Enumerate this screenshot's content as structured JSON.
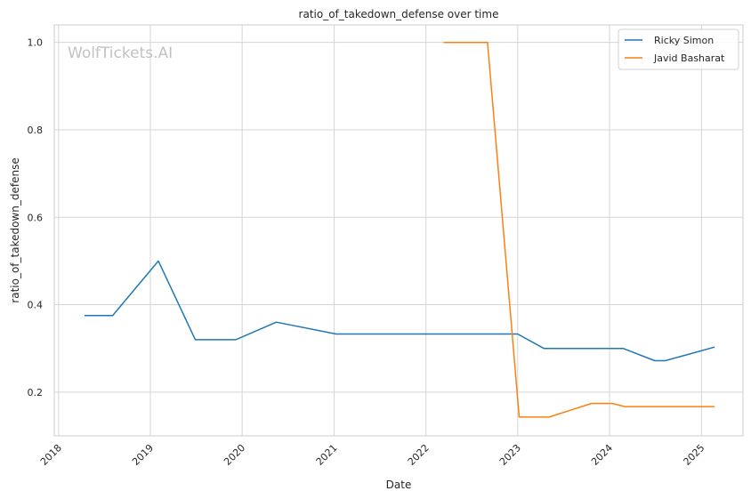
{
  "watermark": "WolfTickets.AI",
  "chart_data": {
    "type": "line",
    "title": "ratio_of_takedown_defense over time",
    "xlabel": "Date",
    "ylabel": "ratio_of_takedown_defense",
    "xlim": [
      "2017-12-15",
      "2025-06-15"
    ],
    "ylim": [
      0.1,
      1.04
    ],
    "x_ticks": [
      "2018",
      "2019",
      "2020",
      "2021",
      "2022",
      "2023",
      "2024",
      "2025"
    ],
    "y_ticks": [
      "0.2",
      "0.4",
      "0.6",
      "0.8",
      "1.0"
    ],
    "grid": true,
    "legend_position": "top-right",
    "series": [
      {
        "name": "Ricky Simon",
        "color": "#1f77b4",
        "points": [
          {
            "x": "2018-04-14",
            "y": 0.375
          },
          {
            "x": "2018-08-04",
            "y": 0.375
          },
          {
            "x": "2019-02-02",
            "y": 0.5
          },
          {
            "x": "2019-06-29",
            "y": 0.32
          },
          {
            "x": "2019-12-07",
            "y": 0.32
          },
          {
            "x": "2020-05-16",
            "y": 0.36
          },
          {
            "x": "2021-01-09",
            "y": 0.333
          },
          {
            "x": "2023-01-01",
            "y": 0.333
          },
          {
            "x": "2023-04-15",
            "y": 0.3
          },
          {
            "x": "2024-02-24",
            "y": 0.3
          },
          {
            "x": "2024-06-29",
            "y": 0.272
          },
          {
            "x": "2024-08-10",
            "y": 0.272
          },
          {
            "x": "2025-02-22",
            "y": 0.303
          }
        ]
      },
      {
        "name": "Javid Basharat",
        "color": "#ff7f0e",
        "points": [
          {
            "x": "2022-03-12",
            "y": 1.0
          },
          {
            "x": "2022-09-03",
            "y": 1.0
          },
          {
            "x": "2023-01-07",
            "y": 0.143
          },
          {
            "x": "2023-05-06",
            "y": 0.143
          },
          {
            "x": "2023-10-21",
            "y": 0.174
          },
          {
            "x": "2024-01-13",
            "y": 0.174
          },
          {
            "x": "2024-03-02",
            "y": 0.167
          },
          {
            "x": "2025-02-22",
            "y": 0.167
          }
        ]
      }
    ]
  }
}
